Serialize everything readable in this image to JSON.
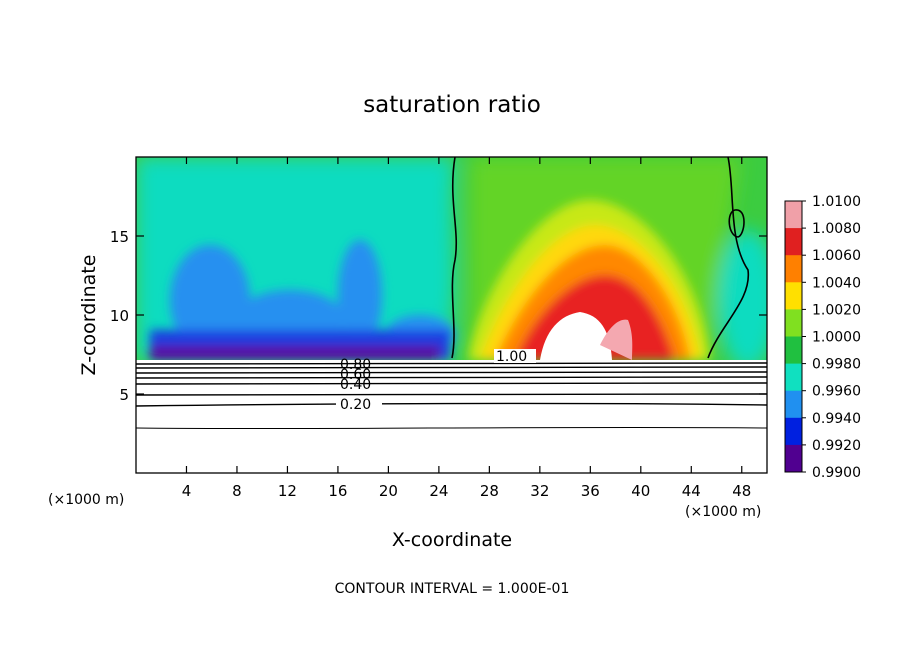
{
  "chart_data": {
    "type": "heatmap",
    "title": "saturation ratio",
    "xlabel": "X-coordinate",
    "ylabel": "Z-coordinate",
    "x_unit": "(×1000 m)",
    "x_unit_right": "(×1000 m)",
    "xlim": [
      0,
      50
    ],
    "ylim": [
      0,
      20
    ],
    "x_ticks": [
      4,
      8,
      12,
      16,
      20,
      24,
      28,
      32,
      36,
      40,
      44,
      48
    ],
    "y_ticks": [
      5,
      10,
      15
    ],
    "colorbar": {
      "levels": [
        "1.0100",
        "1.0080",
        "1.0060",
        "1.0040",
        "1.0020",
        "1.0000",
        "0.9980",
        "0.9960",
        "0.9940",
        "0.9920",
        "0.9900"
      ],
      "colors": [
        "#f0a0a8",
        "#e02020",
        "#ff8000",
        "#ffe000",
        "#80e020",
        "#20c040",
        "#10e0c0",
        "#2090f0",
        "#0020e0",
        "#500090"
      ]
    },
    "contour_labels": [
      "1.00",
      "0.80",
      "0.60",
      "0.40",
      "0.20"
    ],
    "footer": "CONTOUR INTERVAL = 1.000E-01"
  }
}
